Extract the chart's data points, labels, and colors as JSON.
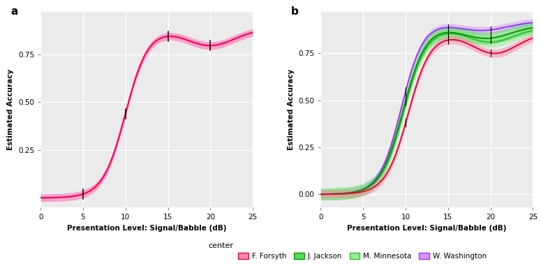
{
  "title_a": "a",
  "title_b": "b",
  "xlabel": "Presentation Level: Signal/Babble (dB)",
  "ylabel": "Estimated Accuracy",
  "xlim": [
    0,
    25
  ],
  "ylim_a": [
    -0.05,
    0.97
  ],
  "ylim_b": [
    -0.07,
    0.97
  ],
  "xticks": [
    0,
    5,
    10,
    15,
    20,
    25
  ],
  "yticks_a": [
    0.25,
    0.5,
    0.75
  ],
  "yticks_b": [
    0.0,
    0.25,
    0.5,
    0.75
  ],
  "bg_color": "#ebebeb",
  "grid_color": "white",
  "line_color_a": "#ff0055",
  "band_color_a": "#ff69b4",
  "line_colors_b": {
    "F. Forsyth": "#ee0033",
    "J. Jackson": "#009900",
    "M. Minnesota": "#33bb33",
    "W. Washington": "#9933ff"
  },
  "fill_colors_b": {
    "F. Forsyth": "#ff88aa",
    "J. Jackson": "#55dd55",
    "M. Minnesota": "#99ee99",
    "W. Washington": "#cc99ff"
  },
  "draw_order": [
    "W. Washington",
    "M. Minnesota",
    "J. Jackson",
    "F. Forsyth"
  ],
  "legend_colors": {
    "F. Forsyth": "#ff88aa",
    "J. Jackson": "#55dd55",
    "M. Minnesota": "#99ee99",
    "W. Washington": "#cc99ff"
  }
}
